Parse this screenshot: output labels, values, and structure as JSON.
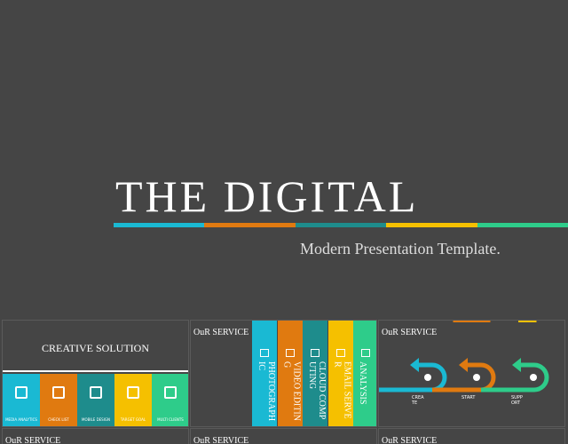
{
  "hero": {
    "title": "THE DIGITAL",
    "subtitle": "Modern Presentation Template."
  },
  "slides": [
    {
      "title": "CREATIVE SOLUTION",
      "items": [
        "MEDIA ANALYTICS",
        "CHECK LIST",
        "MOBILE DESIGN",
        "TARGET GOAL",
        "MULTI CLIENTS"
      ]
    },
    {
      "title": "OuR SERVICE",
      "items": [
        "PHOTOGRAPHIC",
        "VIDEO EDITING",
        "CLOUD COMPUTING",
        "EMAIL SERVER",
        "ANALYSIS"
      ]
    },
    {
      "title": "OuR SERVICE",
      "items": [
        "CREATE",
        "START",
        "SUPPORT"
      ]
    },
    {
      "title": "OuR SERVICE"
    },
    {
      "title": "OuR SERVICE"
    },
    {
      "title": "OuR SERVICE"
    }
  ]
}
